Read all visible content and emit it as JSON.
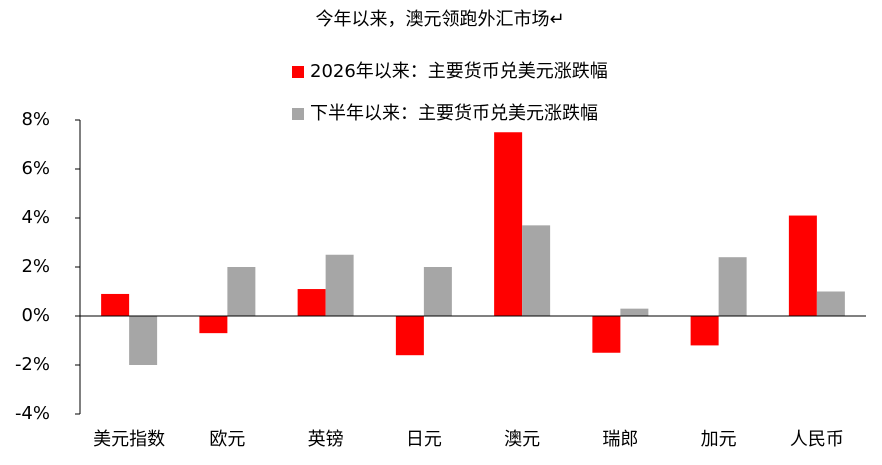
{
  "chart_data": {
    "type": "bar",
    "title": "今年以来，澳元领跑外汇市场↵",
    "categories": [
      "美元指数",
      "欧元",
      "英镑",
      "日元",
      "澳元",
      "瑞郎",
      "加元",
      "人民币"
    ],
    "series": [
      {
        "name": "2026年以来：主要货币兑美元涨跌幅",
        "color": "#ff0000",
        "values": [
          0.9,
          -0.7,
          1.1,
          -1.6,
          7.5,
          -1.5,
          -1.2,
          4.1
        ]
      },
      {
        "name": "下半年以来：主要货币兑美元涨跌幅",
        "color": "#a6a6a6",
        "values": [
          -2.0,
          2.0,
          2.5,
          2.0,
          3.7,
          0.3,
          2.4,
          1.0
        ]
      }
    ],
    "ylim": [
      -4,
      8
    ],
    "yticks": [
      {
        "value": -4,
        "label": "-4%"
      },
      {
        "value": -2,
        "label": "-2%"
      },
      {
        "value": 0,
        "label": "0%"
      },
      {
        "value": 2,
        "label": "2%"
      },
      {
        "value": 4,
        "label": "4%"
      },
      {
        "value": 6,
        "label": "6%"
      },
      {
        "value": 8,
        "label": "8%"
      }
    ]
  }
}
